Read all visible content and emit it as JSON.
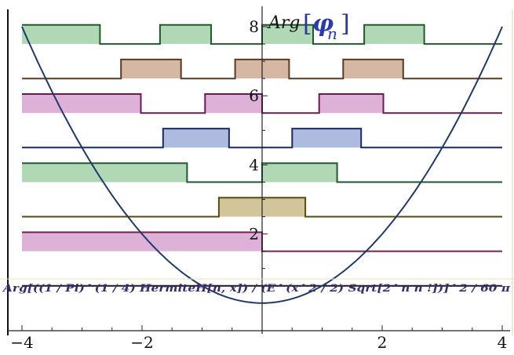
{
  "chart_data": {
    "type": "line",
    "title": "",
    "xlabel": "",
    "ylabel_parts": {
      "base": "Arg",
      "open": "[",
      "symbol": "φ",
      "sub": "n",
      "close": "]"
    },
    "annotation": "Arg[((1 / Pi)^(1 / 4) HermiteH[n, x]) / (E^(x^2 / 2) Sqrt[2^n n !])]^2 / 60 π",
    "xlim": [
      -4,
      4
    ],
    "ylim": [
      -0.8,
      8.5
    ],
    "x_ticks": [
      -4,
      -2,
      2,
      4
    ],
    "y_ticks": [
      2,
      4,
      6,
      8
    ],
    "step_height": 0.55,
    "parabola": {
      "name": "",
      "formula": "x^2/2",
      "color": "#1e3a6a"
    },
    "series": [
      {
        "n": 0,
        "base": 0.5,
        "color": "#1a1a1a",
        "fill": "",
        "high_intervals": []
      },
      {
        "n": 1,
        "base": 1.5,
        "color": "#7a2050",
        "fill": "#d9a8d4",
        "high_intervals": [
          [
            -4,
            0
          ]
        ]
      },
      {
        "n": 2,
        "base": 2.5,
        "color": "#5a4a10",
        "fill": "#cdbf90",
        "high_intervals": [
          [
            -0.72,
            0.72
          ]
        ]
      },
      {
        "n": 3,
        "base": 3.5,
        "color": "#1e5a2a",
        "fill": "#a8d4ac",
        "high_intervals": [
          [
            -4,
            -1.25
          ],
          [
            0,
            1.25
          ]
        ]
      },
      {
        "n": 4,
        "base": 4.5,
        "color": "#1a2a6a",
        "fill": "#a4b4dc",
        "high_intervals": [
          [
            -1.65,
            -0.55
          ],
          [
            0.5,
            1.65
          ]
        ]
      },
      {
        "n": 5,
        "base": 5.5,
        "color": "#6a1a50",
        "fill": "#d9a8d4",
        "high_intervals": [
          [
            -4,
            -2.02
          ],
          [
            -0.95,
            0
          ],
          [
            0.95,
            2.02
          ]
        ]
      },
      {
        "n": 6,
        "base": 6.5,
        "color": "#5a3a20",
        "fill": "#cfb09a",
        "high_intervals": [
          [
            -2.35,
            -1.35
          ],
          [
            -0.45,
            0.45
          ],
          [
            1.35,
            2.35
          ]
        ]
      },
      {
        "n": 7,
        "base": 7.5,
        "color": "#1e5a2a",
        "fill": "#a8d4ac",
        "high_intervals": [
          [
            -4,
            -2.7
          ],
          [
            -1.7,
            -0.85
          ],
          [
            0,
            0.85
          ],
          [
            1.7,
            2.7
          ]
        ]
      }
    ]
  }
}
